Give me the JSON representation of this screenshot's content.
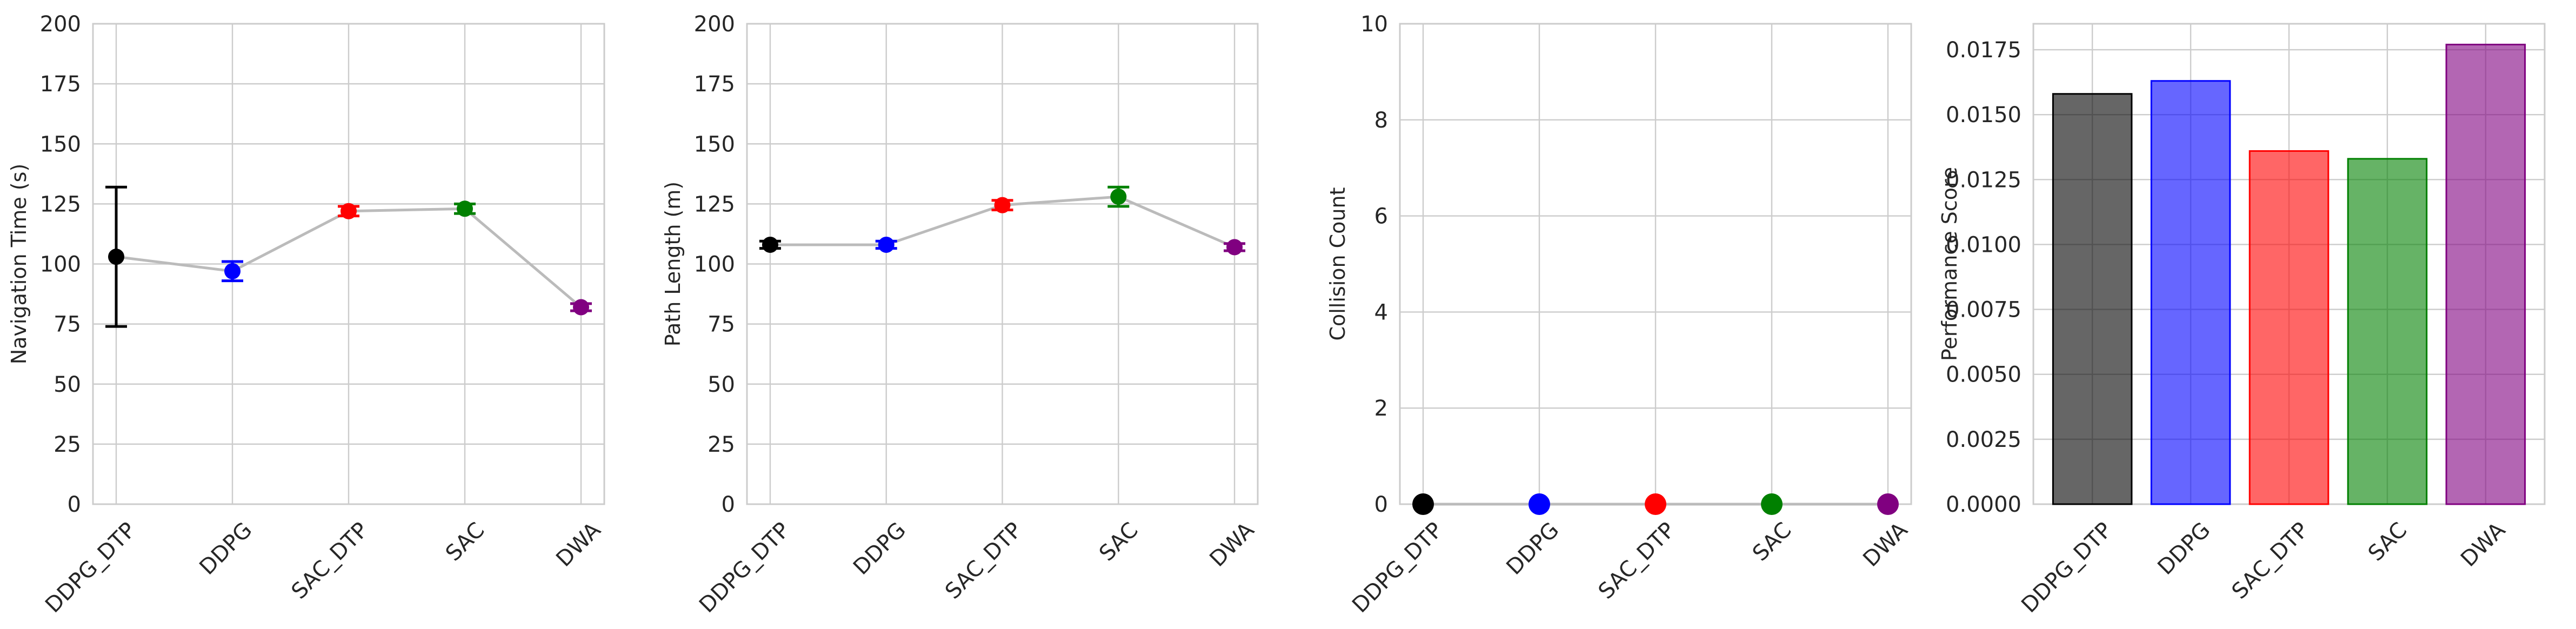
{
  "chart_data": [
    {
      "type": "line",
      "ylabel": "Navigation Time (s)",
      "categories": [
        "DDPG_DTP",
        "DDPG",
        "SAC_DTP",
        "SAC",
        "DWA"
      ],
      "values": [
        103,
        97,
        122,
        123,
        82
      ],
      "errors": [
        29,
        4,
        2,
        2,
        1.5
      ],
      "colors": [
        "#000000",
        "#0000ff",
        "#ff0000",
        "#008000",
        "#800080"
      ],
      "ylim": [
        0,
        200
      ],
      "yticks": [
        "0",
        "25",
        "50",
        "75",
        "100",
        "125",
        "150",
        "175",
        "200"
      ],
      "grid": true
    },
    {
      "type": "line",
      "ylabel": "Path Length (m)",
      "categories": [
        "DDPG_DTP",
        "DDPG",
        "SAC_DTP",
        "SAC",
        "DWA"
      ],
      "values": [
        108,
        108,
        124.5,
        128,
        107
      ],
      "errors": [
        1.5,
        1.5,
        2,
        4,
        1.5
      ],
      "colors": [
        "#000000",
        "#0000ff",
        "#ff0000",
        "#008000",
        "#800080"
      ],
      "ylim": [
        0,
        200
      ],
      "yticks": [
        "0",
        "25",
        "50",
        "75",
        "100",
        "125",
        "150",
        "175",
        "200"
      ],
      "grid": true
    },
    {
      "type": "line",
      "ylabel": "Collision Count",
      "categories": [
        "DDPG_DTP",
        "DDPG",
        "SAC_DTP",
        "SAC",
        "DWA"
      ],
      "values": [
        0,
        0,
        0,
        0,
        0
      ],
      "errors": [
        0,
        0,
        0,
        0,
        0
      ],
      "colors": [
        "#000000",
        "#0000ff",
        "#ff0000",
        "#008000",
        "#800080"
      ],
      "ylim": [
        0,
        10
      ],
      "yticks": [
        "0",
        "2",
        "4",
        "6",
        "8",
        "10"
      ],
      "grid": true
    },
    {
      "type": "bar",
      "ylabel": "Performance Score",
      "categories": [
        "DDPG_DTP",
        "DDPG",
        "SAC_DTP",
        "SAC",
        "DWA"
      ],
      "values": [
        0.0158,
        0.0163,
        0.0136,
        0.0133,
        0.0177
      ],
      "colors": [
        "#000000",
        "#0000ff",
        "#ff0000",
        "#008000",
        "#800080"
      ],
      "ylim": [
        0,
        0.0185
      ],
      "yticks": [
        "0.0000",
        "0.0025",
        "0.0050",
        "0.0075",
        "0.0100",
        "0.0125",
        "0.0150",
        "0.0175"
      ],
      "grid": true
    }
  ]
}
